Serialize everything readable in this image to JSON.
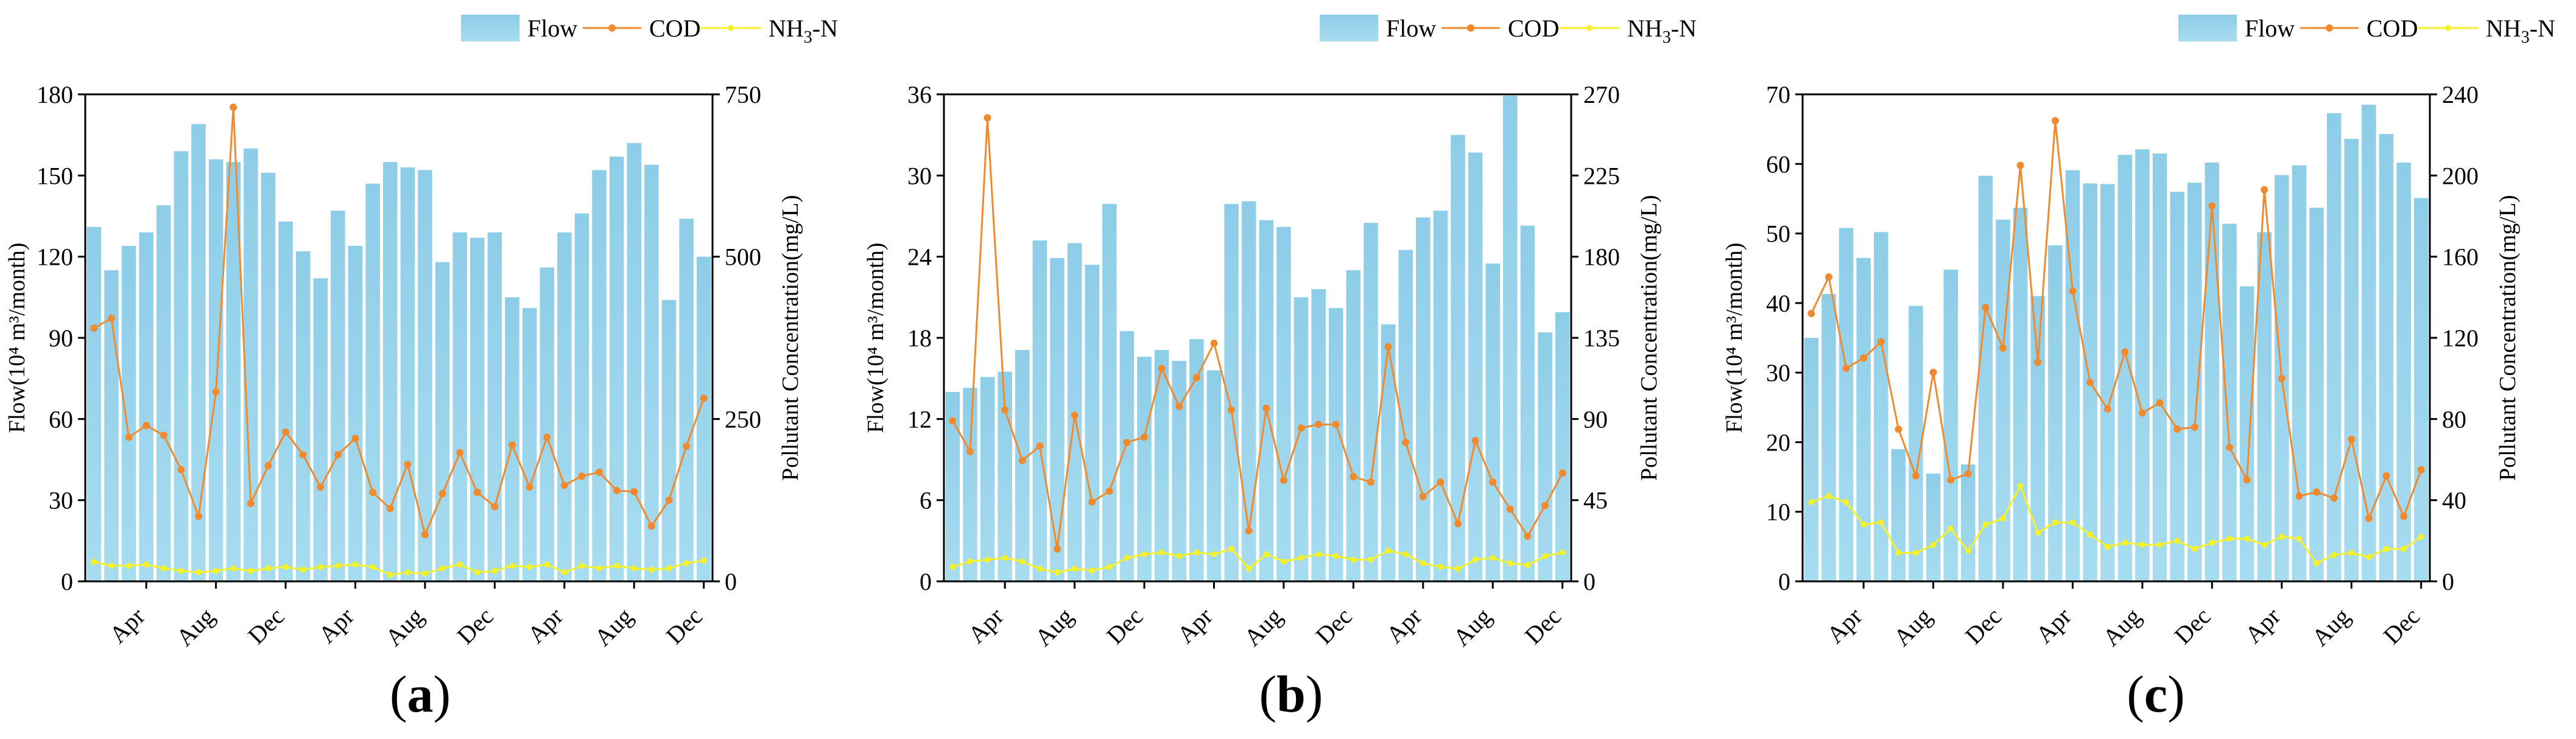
{
  "legend": {
    "flow": "Flow",
    "cod": "COD",
    "nh3": "NH3-N"
  },
  "colors": {
    "flow_bar": "#a7dcf0",
    "flow_bar_top": "#8ecde8",
    "cod": "#f08a2e",
    "nh3": "#f4f02a",
    "axis": "#000000"
  },
  "chart_data": [
    {
      "type": "bar",
      "panel_label": "a",
      "ylabel": "Flow(10⁴ m³/month)",
      "y2label": "Pollutant Concentration(mg/L)",
      "ylim": [
        0,
        180
      ],
      "y2lim": [
        0,
        750
      ],
      "yticks": [
        0,
        30,
        60,
        90,
        120,
        150,
        180
      ],
      "y2ticks": [
        0,
        250,
        500,
        750
      ],
      "xtick_labels": [
        {
          "index": 3,
          "label": "Apr"
        },
        {
          "index": 7,
          "label": "Aug"
        },
        {
          "index": 11,
          "label": "Dec"
        },
        {
          "index": 15,
          "label": "Apr"
        },
        {
          "index": 19,
          "label": "Aug"
        },
        {
          "index": 23,
          "label": "Dec"
        },
        {
          "index": 27,
          "label": "Apr"
        },
        {
          "index": 31,
          "label": "Aug"
        },
        {
          "index": 35,
          "label": "Dec"
        }
      ],
      "series": [
        {
          "name": "Flow",
          "axis": "left",
          "kind": "bar",
          "values": [
            131,
            115,
            124,
            129,
            139,
            159,
            169,
            156,
            155,
            160,
            151,
            133,
            122,
            112,
            137,
            124,
            147,
            155,
            153,
            152,
            118,
            129,
            127,
            129,
            105,
            101,
            116,
            129,
            136,
            152,
            157,
            162,
            154,
            104,
            134,
            120
          ]
        },
        {
          "name": "COD",
          "axis": "right",
          "kind": "line",
          "values": [
            390,
            405,
            222,
            240,
            225,
            172,
            100,
            292,
            730,
            120,
            178,
            230,
            195,
            145,
            195,
            220,
            137,
            112,
            180,
            72,
            135,
            198,
            137,
            115,
            210,
            145,
            222,
            148,
            162,
            168,
            140,
            138,
            85,
            125,
            208,
            282
          ]
        },
        {
          "name": "NH3-N",
          "axis": "right",
          "kind": "line",
          "values": [
            30,
            24,
            24,
            26,
            20,
            16,
            14,
            16,
            20,
            16,
            20,
            22,
            18,
            22,
            24,
            26,
            22,
            10,
            14,
            12,
            20,
            26,
            14,
            16,
            24,
            22,
            26,
            14,
            24,
            20,
            24,
            20,
            18,
            20,
            28,
            32
          ]
        }
      ]
    },
    {
      "type": "bar",
      "panel_label": "b",
      "ylabel": "Flow(10⁴ m³/month)",
      "y2label": "Pollutant Concentration(mg/L)",
      "ylim": [
        0,
        36
      ],
      "y2lim": [
        0,
        270
      ],
      "yticks": [
        0,
        6,
        12,
        18,
        24,
        30,
        36
      ],
      "y2ticks": [
        0,
        45,
        90,
        135,
        180,
        225,
        270
      ],
      "xtick_labels": [
        {
          "index": 3,
          "label": "Apr"
        },
        {
          "index": 7,
          "label": "Aug"
        },
        {
          "index": 11,
          "label": "Dec"
        },
        {
          "index": 15,
          "label": "Apr"
        },
        {
          "index": 19,
          "label": "Aug"
        },
        {
          "index": 23,
          "label": "Dec"
        },
        {
          "index": 27,
          "label": "Apr"
        },
        {
          "index": 31,
          "label": "Aug"
        },
        {
          "index": 35,
          "label": "Dec"
        }
      ],
      "series": [
        {
          "name": "Flow",
          "axis": "left",
          "kind": "bar",
          "values": [
            14,
            14.3,
            15.1,
            15.5,
            17.1,
            25.2,
            23.9,
            25,
            23.4,
            27.9,
            18.5,
            16.6,
            17.1,
            16.3,
            17.9,
            15.6,
            27.9,
            28.1,
            26.7,
            26.2,
            21,
            21.6,
            20.2,
            23,
            26.5,
            19,
            24.5,
            26.9,
            27.4,
            33,
            31.7,
            23.5,
            35.9,
            26.3,
            18.4,
            19.9
          ]
        },
        {
          "name": "COD",
          "axis": "right",
          "kind": "line",
          "values": [
            89,
            72,
            257,
            95,
            67,
            75,
            18,
            92,
            44,
            50,
            77,
            80,
            118,
            97,
            113,
            132,
            95,
            28,
            96,
            56,
            85,
            87,
            87,
            58,
            55,
            130,
            77,
            47,
            55,
            32,
            78,
            55,
            40,
            25,
            42,
            60
          ]
        },
        {
          "name": "NH3-N",
          "axis": "right",
          "kind": "line",
          "values": [
            8,
            11,
            12,
            13,
            11,
            7,
            5,
            7,
            6,
            8,
            13,
            15,
            16,
            14,
            16,
            15,
            18,
            7,
            15,
            11,
            13,
            15,
            14,
            12,
            12,
            17,
            15,
            10,
            8,
            7,
            12,
            13,
            10,
            9,
            14,
            16
          ]
        }
      ]
    },
    {
      "type": "bar",
      "panel_label": "c",
      "ylabel": "Flow(10⁴ m³/month)",
      "y2label": "Pollutant Concentration(mg/L)",
      "ylim": [
        0,
        70
      ],
      "y2lim": [
        0,
        240
      ],
      "yticks": [
        0,
        10,
        20,
        30,
        40,
        50,
        60,
        70
      ],
      "y2ticks": [
        0,
        40,
        80,
        120,
        160,
        200,
        240
      ],
      "xtick_labels": [
        {
          "index": 3,
          "label": "Apr"
        },
        {
          "index": 7,
          "label": "Aug"
        },
        {
          "index": 11,
          "label": "Dec"
        },
        {
          "index": 15,
          "label": "Apr"
        },
        {
          "index": 19,
          "label": "Aug"
        },
        {
          "index": 23,
          "label": "Dec"
        },
        {
          "index": 27,
          "label": "Apr"
        },
        {
          "index": 31,
          "label": "Aug"
        },
        {
          "index": 35,
          "label": "Dec"
        }
      ],
      "series": [
        {
          "name": "Flow",
          "axis": "left",
          "kind": "bar",
          "values": [
            35,
            41.3,
            50.8,
            46.5,
            50.2,
            19,
            39.6,
            15.5,
            44.8,
            16.8,
            58.3,
            52,
            53.7,
            41,
            48.3,
            59.1,
            57.2,
            57.1,
            61.3,
            62.1,
            61.5,
            56,
            57.3,
            60.2,
            51.4,
            42.4,
            50.2,
            58.4,
            59.8,
            53.7,
            67.3,
            63.6,
            68.5,
            64.3,
            60.2,
            55.1
          ]
        },
        {
          "name": "COD",
          "axis": "right",
          "kind": "line",
          "values": [
            132,
            150,
            105,
            110,
            118,
            75,
            52,
            103,
            50,
            53,
            135,
            115,
            205,
            108,
            227,
            143,
            98,
            85,
            113,
            83,
            88,
            75,
            76,
            185,
            66,
            50,
            193,
            100,
            42,
            44,
            41,
            70,
            31,
            52,
            32,
            55
          ]
        },
        {
          "name": "NH3-N",
          "axis": "right",
          "kind": "line",
          "values": [
            39,
            42,
            39,
            28,
            29,
            14,
            14,
            18,
            26,
            15,
            28,
            31,
            47,
            24,
            29,
            29,
            23,
            17,
            19,
            18,
            18,
            20,
            16,
            19,
            21,
            21,
            18,
            22,
            21,
            9,
            13,
            14,
            12,
            16,
            16,
            22
          ]
        }
      ]
    }
  ]
}
